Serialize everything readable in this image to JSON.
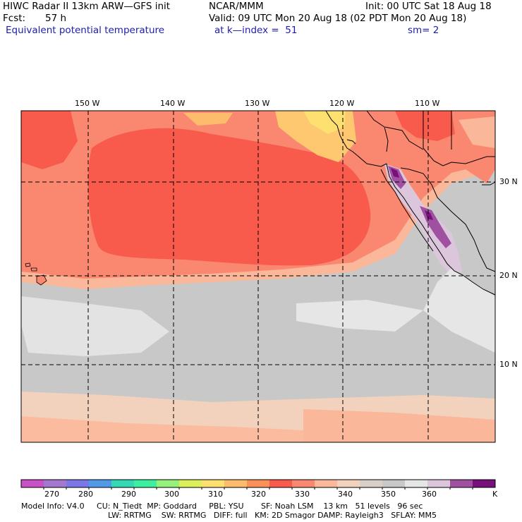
{
  "header": {
    "model": "HIWC Radar II 13km ARW—GFS init",
    "org": "NCAR/MMM",
    "init": "Init: 00 UTC Sat 18 Aug 18",
    "fcst_label": "Fcst:",
    "fcst_value": "57 h",
    "valid": "Valid: 09 UTC Mon 20 Aug 18 (02 PDT Mon 20 Aug 18)",
    "field": "Equivalent potential temperature",
    "level": "at k—index =  51",
    "smooth": "sm= 2"
  },
  "map": {
    "lon_labels": [
      "150 W",
      "140 W",
      "130 W",
      "120 W",
      "110 W"
    ],
    "lat_labels": [
      "30 N",
      "20 N",
      "10 N"
    ],
    "grid": true
  },
  "colorbar": {
    "labels": [
      "270",
      "280",
      "290",
      "300",
      "310",
      "320",
      "330",
      "340",
      "350",
      "360"
    ],
    "unit": "K",
    "colors": [
      "#c851c8",
      "#a478cf",
      "#7a78e8",
      "#4f9be8",
      "#34d8b4",
      "#3cf0a0",
      "#96f07a",
      "#dcf05a",
      "#fde070",
      "#fcbc6c",
      "#fb9058",
      "#f85a4c",
      "#fa8870",
      "#fbb79a",
      "#f2d2bc",
      "#d8d0c8",
      "#c8c8c8",
      "#e6e6e6",
      "#dcc6dc",
      "#a050a0",
      "#78107c"
    ]
  },
  "footer": {
    "line1": "Model Info: V4.0     CU: N_Tiedt  MP: Goddard     PBL: YSU       SF: Noah LSM    13 km   51 levels   96 sec",
    "line2": "LW: RRTMG    SW: RRTMG   DIFF: full   KM: 2D Smagor DAMP: Rayleigh3   SFLAY: MM5"
  }
}
